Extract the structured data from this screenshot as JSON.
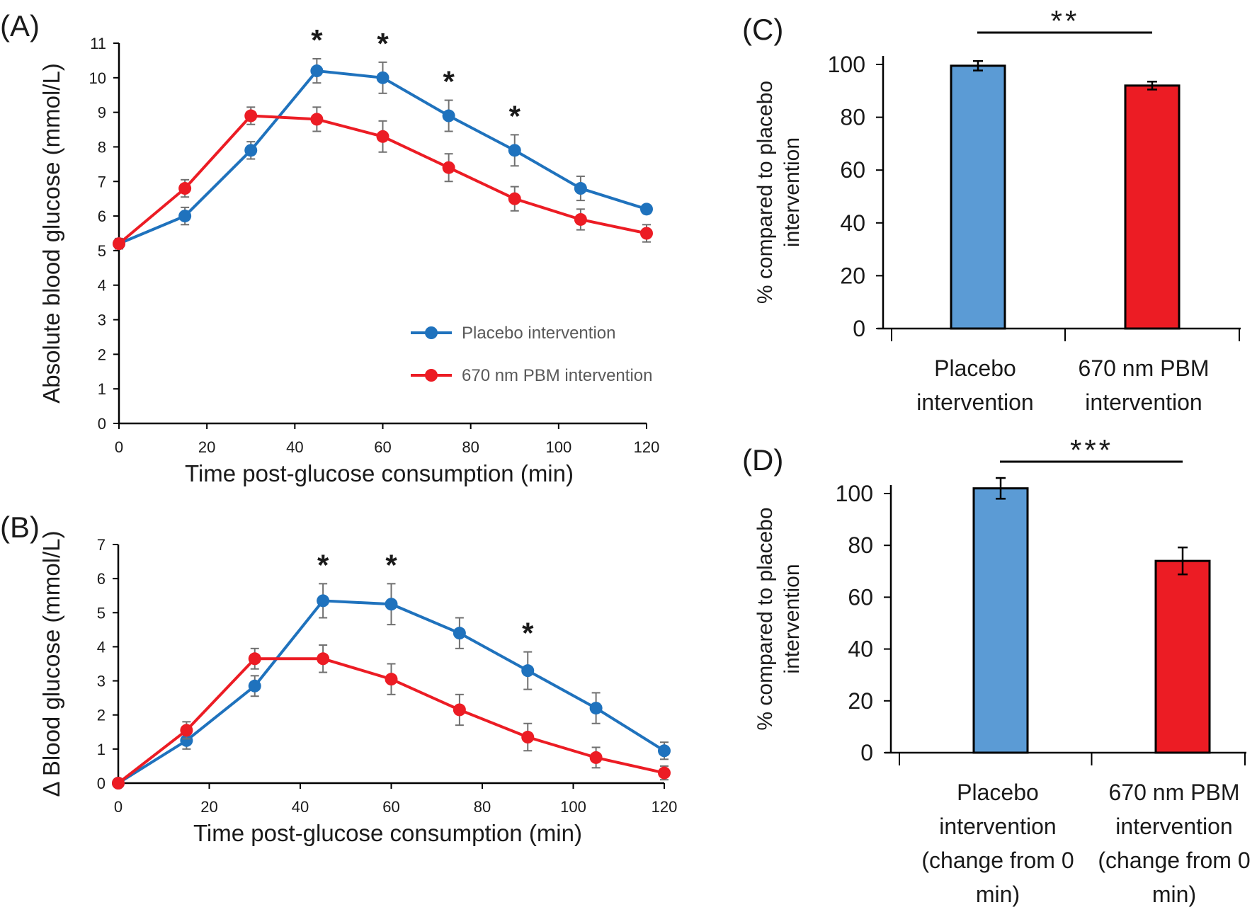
{
  "colors": {
    "placebo": "#1f72bd",
    "pbm": "#ec1c24",
    "bar_placebo": "#5b9bd5",
    "bar_pbm": "#ec1c24",
    "axis": "#000000",
    "error": "#707070"
  },
  "chart_data": [
    {
      "id": "A",
      "panel_label": "(A)",
      "type": "line",
      "xlabel": "Time post-glucose consumption (min)",
      "ylabel": "Absolute blood glucose (mmol/L)",
      "xlim": [
        0,
        120
      ],
      "ylim": [
        0,
        11
      ],
      "xticks": [
        0,
        20,
        40,
        60,
        80,
        100,
        120
      ],
      "yticks": [
        0,
        1,
        2,
        3,
        4,
        5,
        6,
        7,
        8,
        9,
        10,
        11
      ],
      "x": [
        0,
        15,
        30,
        45,
        60,
        75,
        90,
        105,
        120
      ],
      "series": [
        {
          "name": "Placebo intervention",
          "color_key": "placebo",
          "values": [
            5.2,
            6.0,
            7.9,
            10.2,
            10.0,
            8.9,
            7.9,
            6.8,
            6.2
          ],
          "errors": [
            0.15,
            0.25,
            0.25,
            0.35,
            0.45,
            0.45,
            0.45,
            0.35,
            0.1
          ]
        },
        {
          "name": "670 nm PBM intervention",
          "color_key": "pbm",
          "values": [
            5.2,
            6.8,
            8.9,
            8.8,
            8.3,
            7.4,
            6.5,
            5.9,
            5.5
          ],
          "errors": [
            0.1,
            0.25,
            0.25,
            0.35,
            0.45,
            0.4,
            0.35,
            0.3,
            0.25
          ]
        }
      ],
      "significance": [
        {
          "x": 45,
          "label": "*"
        },
        {
          "x": 60,
          "label": "*"
        },
        {
          "x": 75,
          "label": "*"
        },
        {
          "x": 90,
          "label": "*"
        }
      ],
      "legend_placement": "center-right"
    },
    {
      "id": "B",
      "panel_label": "(B)",
      "type": "line",
      "xlabel": "Time post-glucose consumption (min)",
      "ylabel": "Δ Blood glucose (mmol/L)",
      "xlim": [
        0,
        120
      ],
      "ylim": [
        0,
        7
      ],
      "xticks": [
        0,
        20,
        40,
        60,
        80,
        100,
        120
      ],
      "yticks": [
        0,
        1,
        2,
        3,
        4,
        5,
        6,
        7
      ],
      "x": [
        0,
        15,
        30,
        45,
        60,
        75,
        90,
        105,
        120
      ],
      "series": [
        {
          "name": "Placebo intervention",
          "color_key": "placebo",
          "values": [
            0,
            1.25,
            2.85,
            5.35,
            5.25,
            4.4,
            3.3,
            2.2,
            0.95
          ],
          "errors": [
            0,
            0.25,
            0.3,
            0.5,
            0.6,
            0.45,
            0.55,
            0.45,
            0.25
          ]
        },
        {
          "name": "670 nm PBM intervention",
          "color_key": "pbm",
          "values": [
            0,
            1.55,
            3.65,
            3.65,
            3.05,
            2.15,
            1.35,
            0.75,
            0.3
          ],
          "errors": [
            0,
            0.25,
            0.3,
            0.4,
            0.45,
            0.45,
            0.4,
            0.3,
            0.2
          ]
        }
      ],
      "significance": [
        {
          "x": 45,
          "label": "*"
        },
        {
          "x": 60,
          "label": "*"
        },
        {
          "x": 90,
          "label": "*"
        }
      ]
    },
    {
      "id": "C",
      "panel_label": "(C)",
      "type": "bar",
      "ylabel": [
        "% compared to placebo",
        "intervention"
      ],
      "ylim": [
        0,
        100
      ],
      "yticks": [
        0,
        20,
        40,
        60,
        80,
        100
      ],
      "categories": [
        [
          "Placebo",
          "intervention"
        ],
        [
          "670 nm PBM",
          "intervention"
        ]
      ],
      "values": [
        99.5,
        92
      ],
      "errors": [
        1.8,
        1.5
      ],
      "color_keys": [
        "bar_placebo",
        "bar_pbm"
      ],
      "significance": "**"
    },
    {
      "id": "D",
      "panel_label": "(D)",
      "type": "bar",
      "ylabel": [
        "% compared to placebo",
        "intervention"
      ],
      "ylim": [
        0,
        100
      ],
      "yticks": [
        0,
        20,
        40,
        60,
        80,
        100
      ],
      "categories": [
        [
          "Placebo",
          "intervention",
          "(change from 0",
          "min)"
        ],
        [
          "670 nm PBM",
          "intervention",
          "(change from 0",
          "min)"
        ]
      ],
      "values": [
        102,
        74
      ],
      "errors": [
        4,
        5.2
      ],
      "color_keys": [
        "bar_placebo",
        "bar_pbm"
      ],
      "significance": "***"
    }
  ]
}
